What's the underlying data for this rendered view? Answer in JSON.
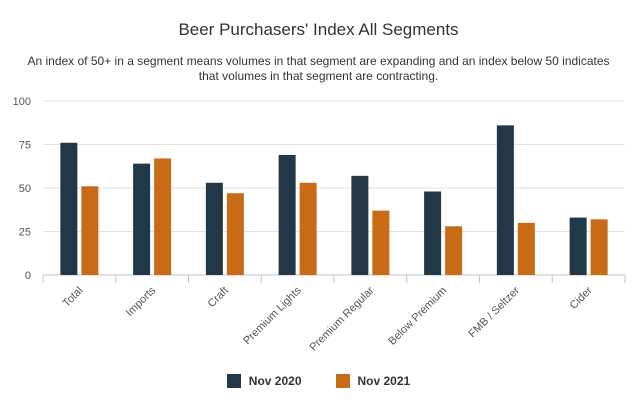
{
  "chart_data": {
    "type": "bar",
    "title": "Beer Purchasers' Index All Segments",
    "subtitle": "An index of 50+ in a segment means volumes in that segment are expanding and an index below 50 indicates that volumes in that segment are contracting.",
    "categories": [
      "Total",
      "Imports",
      "Craft",
      "Premium Lights",
      "Premium Regular",
      "Below Premium",
      "FMB / Seltzer",
      "Cider"
    ],
    "series": [
      {
        "name": "Nov 2020",
        "color": "#223747",
        "values": [
          76,
          64,
          53,
          69,
          57,
          48,
          86,
          33
        ]
      },
      {
        "name": "Nov 2021",
        "color": "#c96b16",
        "values": [
          51,
          67,
          47,
          53,
          37,
          28,
          30,
          32
        ]
      }
    ],
    "ylim": [
      0,
      100
    ],
    "yticks": [
      0,
      25,
      50,
      75,
      100
    ],
    "grid": true,
    "legend_position": "bottom-center"
  }
}
